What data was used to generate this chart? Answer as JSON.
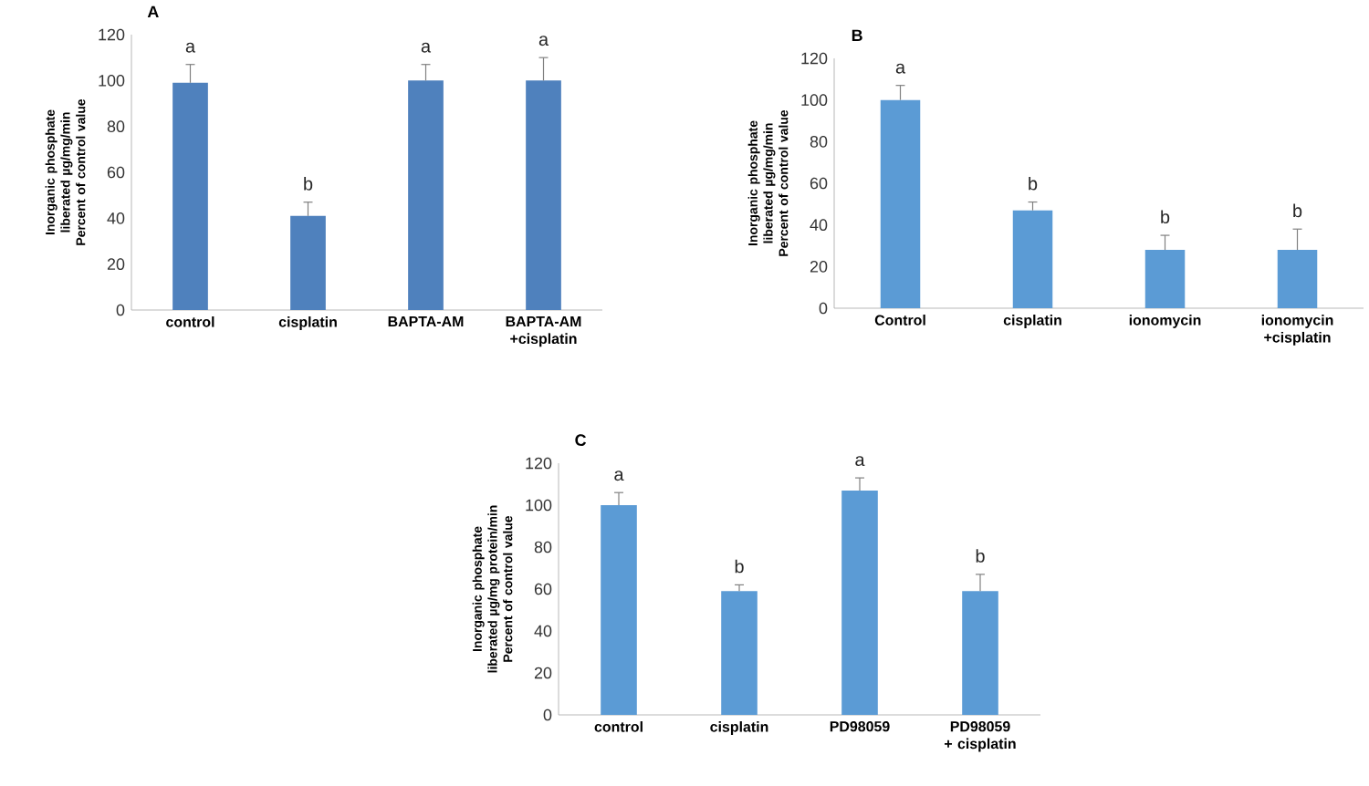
{
  "chart_data": [
    {
      "type": "bar",
      "title": "A",
      "ylabel": "Inorganic phosphate liberated µg/mg/min Percent of control value",
      "categories": [
        "control",
        "cisplatin",
        "BAPTA-AM",
        "BAPTA-AM +cisplatin"
      ],
      "values": [
        99,
        41,
        100,
        100
      ],
      "color": "#4f81bd",
      "errors": [
        [
          99,
          107
        ],
        [
          41,
          47
        ],
        [
          100,
          107
        ],
        [
          100,
          110
        ]
      ],
      "ylim": [
        0,
        120
      ],
      "yticks": [
        0,
        20,
        40,
        60,
        80,
        100,
        120
      ],
      "annotations": [
        "a",
        "b",
        "a",
        "a"
      ]
    },
    {
      "type": "bar",
      "title": "B",
      "ylabel": "Inorganic phosphate liberated µg/mg/min Percent of control value",
      "categories": [
        "Control",
        "cisplatin",
        "ionomycin",
        "ionomycin +cisplatin"
      ],
      "values": [
        100,
        47,
        28,
        28
      ],
      "color": "#5b9bd5",
      "errors": [
        [
          100,
          107
        ],
        [
          47,
          51
        ],
        [
          28,
          35
        ],
        [
          28,
          38
        ]
      ],
      "ylim": [
        0,
        120
      ],
      "yticks": [
        0,
        20,
        40,
        60,
        80,
        100,
        120
      ],
      "annotations": [
        "a",
        "b",
        "b",
        "b"
      ]
    },
    {
      "type": "bar",
      "title": "C",
      "ylabel": "Inorganic phosphate liberated µg/mg protein/min Percent of control value",
      "categories": [
        "control",
        "cisplatin",
        "PD98059",
        "PD98059 + cisplatin"
      ],
      "values": [
        100,
        59,
        107,
        59
      ],
      "color": "#5b9bd5",
      "errors": [
        [
          100,
          106
        ],
        [
          59,
          62
        ],
        [
          107,
          113
        ],
        [
          59,
          67
        ]
      ],
      "ylim": [
        0,
        120
      ],
      "yticks": [
        0,
        20,
        40,
        60,
        80,
        100,
        120
      ],
      "annotations": [
        "a",
        "b",
        "a",
        "b"
      ]
    }
  ]
}
